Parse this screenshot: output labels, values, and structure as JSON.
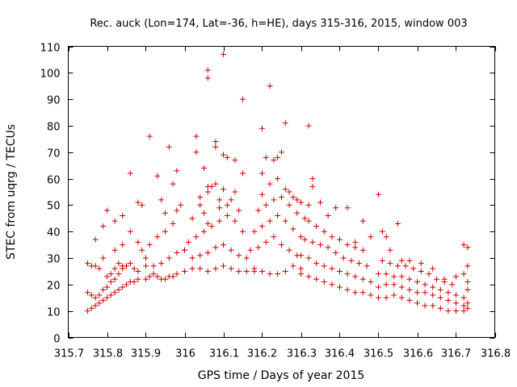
{
  "chart_data": {
    "type": "scatter",
    "title": "Rec. auck (Lon=174, Lat=-36, h=HE), days 315-316, 2015, window 003",
    "xlabel": "GPS time / Days of year 2015",
    "ylabel": "STEC from uqrg / TECUs",
    "xlim": [
      315.7,
      316.8
    ],
    "ylim": [
      0,
      110
    ],
    "x_ticks": [
      "315.7",
      "315.8",
      "315.9",
      "316",
      "316.1",
      "316.2",
      "316.3",
      "316.4",
      "316.5",
      "316.6",
      "316.7",
      "316.8"
    ],
    "y_ticks": [
      "0",
      "10",
      "20",
      "30",
      "40",
      "50",
      "60",
      "70",
      "80",
      "90",
      "100",
      "110"
    ],
    "grid": false,
    "legend": "none",
    "marker": "plus",
    "color": "#cc0000",
    "series": [
      {
        "points": [
          [
            315.75,
            10
          ],
          [
            315.76,
            11
          ],
          [
            315.77,
            12
          ],
          [
            315.78,
            13
          ],
          [
            315.79,
            14
          ],
          [
            315.8,
            15
          ],
          [
            315.81,
            16
          ],
          [
            315.82,
            17
          ],
          [
            315.83,
            18
          ],
          [
            315.84,
            19
          ],
          [
            315.85,
            20
          ],
          [
            315.86,
            21
          ],
          [
            315.87,
            21
          ],
          [
            315.88,
            22
          ],
          [
            315.75,
            17
          ],
          [
            315.76,
            16
          ],
          [
            315.77,
            15
          ],
          [
            315.78,
            16
          ],
          [
            315.79,
            18
          ],
          [
            315.8,
            19
          ],
          [
            315.81,
            21
          ],
          [
            315.82,
            22
          ],
          [
            315.83,
            24
          ],
          [
            315.84,
            26
          ],
          [
            315.75,
            28
          ],
          [
            315.76,
            27
          ],
          [
            315.77,
            27
          ],
          [
            315.78,
            26
          ],
          [
            315.8,
            23
          ],
          [
            315.81,
            24
          ],
          [
            315.82,
            26
          ],
          [
            315.83,
            28
          ],
          [
            315.84,
            27
          ],
          [
            315.85,
            27
          ],
          [
            315.86,
            28
          ],
          [
            315.87,
            26
          ],
          [
            315.88,
            25
          ],
          [
            315.79,
            30
          ],
          [
            315.82,
            33
          ],
          [
            315.84,
            35
          ],
          [
            315.86,
            40
          ],
          [
            315.88,
            36
          ],
          [
            315.89,
            33
          ],
          [
            315.9,
            30
          ],
          [
            315.77,
            37
          ],
          [
            315.79,
            42
          ],
          [
            315.8,
            48
          ],
          [
            315.82,
            44
          ],
          [
            315.84,
            46
          ],
          [
            315.86,
            62
          ],
          [
            315.88,
            51
          ],
          [
            315.89,
            50
          ],
          [
            315.9,
            22
          ],
          [
            315.91,
            23
          ],
          [
            315.92,
            24
          ],
          [
            315.93,
            23
          ],
          [
            315.94,
            22
          ],
          [
            315.95,
            22
          ],
          [
            315.96,
            23
          ],
          [
            315.97,
            23
          ],
          [
            315.98,
            24
          ],
          [
            315.9,
            27
          ],
          [
            315.92,
            27
          ],
          [
            315.94,
            28
          ],
          [
            315.96,
            30
          ],
          [
            315.98,
            32
          ],
          [
            316.0,
            33
          ],
          [
            315.91,
            35
          ],
          [
            315.93,
            38
          ],
          [
            315.95,
            40
          ],
          [
            315.97,
            43
          ],
          [
            315.98,
            48
          ],
          [
            315.99,
            50
          ],
          [
            315.91,
            76
          ],
          [
            315.93,
            61
          ],
          [
            315.94,
            52
          ],
          [
            315.95,
            47
          ],
          [
            315.96,
            72
          ],
          [
            315.97,
            58
          ],
          [
            315.98,
            63
          ],
          [
            316.0,
            25
          ],
          [
            316.02,
            26
          ],
          [
            316.04,
            26
          ],
          [
            316.06,
            25
          ],
          [
            316.08,
            26
          ],
          [
            316.1,
            27
          ],
          [
            316.12,
            26
          ],
          [
            316.14,
            25
          ],
          [
            316.16,
            25
          ],
          [
            316.18,
            26
          ],
          [
            316.0,
            33
          ],
          [
            316.02,
            30
          ],
          [
            316.04,
            31
          ],
          [
            316.06,
            32
          ],
          [
            316.08,
            34
          ],
          [
            316.1,
            35
          ],
          [
            316.12,
            33
          ],
          [
            316.14,
            31
          ],
          [
            316.16,
            30
          ],
          [
            316.01,
            36
          ],
          [
            316.03,
            38
          ],
          [
            316.05,
            40
          ],
          [
            316.07,
            42
          ],
          [
            316.09,
            44
          ],
          [
            316.11,
            46
          ],
          [
            316.13,
            44
          ],
          [
            316.15,
            40
          ],
          [
            316.02,
            45
          ],
          [
            316.04,
            50
          ],
          [
            316.06,
            55
          ],
          [
            316.08,
            58
          ],
          [
            316.1,
            56
          ],
          [
            316.12,
            52
          ],
          [
            316.14,
            48
          ],
          [
            316.03,
            70
          ],
          [
            316.05,
            64
          ],
          [
            316.07,
            57
          ],
          [
            316.09,
            52
          ],
          [
            316.11,
            50
          ],
          [
            316.13,
            55
          ],
          [
            316.03,
            76
          ],
          [
            316.08,
            74
          ],
          [
            316.11,
            68
          ],
          [
            316.13,
            67
          ],
          [
            316.06,
            101
          ],
          [
            316.06,
            57
          ],
          [
            316.08,
            72
          ],
          [
            316.1,
            69
          ],
          [
            316.06,
            43
          ],
          [
            316.04,
            53
          ],
          [
            316.05,
            47
          ],
          [
            316.09,
            49
          ],
          [
            316.15,
            62
          ],
          [
            316.06,
            98
          ],
          [
            316.1,
            107
          ],
          [
            316.15,
            90
          ],
          [
            316.18,
            25
          ],
          [
            316.2,
            25
          ],
          [
            316.22,
            24
          ],
          [
            316.24,
            24
          ],
          [
            316.26,
            25
          ],
          [
            316.28,
            27
          ],
          [
            316.3,
            26
          ],
          [
            316.17,
            33
          ],
          [
            316.19,
            34
          ],
          [
            316.21,
            36
          ],
          [
            316.23,
            38
          ],
          [
            316.25,
            35
          ],
          [
            316.27,
            33
          ],
          [
            316.29,
            31
          ],
          [
            316.18,
            40
          ],
          [
            316.2,
            42
          ],
          [
            316.22,
            44
          ],
          [
            316.24,
            46
          ],
          [
            316.26,
            44
          ],
          [
            316.28,
            41
          ],
          [
            316.3,
            38
          ],
          [
            316.19,
            48
          ],
          [
            316.21,
            50
          ],
          [
            316.23,
            52
          ],
          [
            316.25,
            53
          ],
          [
            316.27,
            50
          ],
          [
            316.29,
            47
          ],
          [
            316.31,
            45
          ],
          [
            316.2,
            54
          ],
          [
            316.22,
            58
          ],
          [
            316.24,
            60
          ],
          [
            316.26,
            56
          ],
          [
            316.28,
            53
          ],
          [
            316.3,
            51
          ],
          [
            316.2,
            79
          ],
          [
            316.21,
            68
          ],
          [
            316.22,
            95
          ],
          [
            316.23,
            67
          ],
          [
            316.25,
            70
          ],
          [
            316.26,
            81
          ],
          [
            316.2,
            62
          ],
          [
            316.24,
            68
          ],
          [
            316.27,
            55
          ],
          [
            316.29,
            52
          ],
          [
            316.32,
            50
          ],
          [
            316.3,
            24
          ],
          [
            316.32,
            23
          ],
          [
            316.34,
            22
          ],
          [
            316.36,
            21
          ],
          [
            316.38,
            20
          ],
          [
            316.4,
            19
          ],
          [
            316.42,
            18
          ],
          [
            316.44,
            17
          ],
          [
            316.46,
            17
          ],
          [
            316.48,
            16
          ],
          [
            316.3,
            31
          ],
          [
            316.32,
            30
          ],
          [
            316.34,
            28
          ],
          [
            316.36,
            27
          ],
          [
            316.38,
            26
          ],
          [
            316.4,
            25
          ],
          [
            316.42,
            24
          ],
          [
            316.44,
            23
          ],
          [
            316.46,
            22
          ],
          [
            316.48,
            21
          ],
          [
            316.31,
            37
          ],
          [
            316.33,
            36
          ],
          [
            316.35,
            35
          ],
          [
            316.37,
            34
          ],
          [
            316.39,
            32
          ],
          [
            316.41,
            30
          ],
          [
            316.43,
            29
          ],
          [
            316.45,
            28
          ],
          [
            316.47,
            27
          ],
          [
            316.32,
            44
          ],
          [
            316.34,
            42
          ],
          [
            316.36,
            40
          ],
          [
            316.38,
            38
          ],
          [
            316.4,
            37
          ],
          [
            316.42,
            35
          ],
          [
            316.44,
            34
          ],
          [
            316.46,
            33
          ],
          [
            316.33,
            60
          ],
          [
            316.32,
            80
          ],
          [
            316.33,
            57
          ],
          [
            316.35,
            51
          ],
          [
            316.37,
            46
          ],
          [
            316.39,
            49
          ],
          [
            316.42,
            49
          ],
          [
            316.44,
            36
          ],
          [
            316.46,
            44
          ],
          [
            316.48,
            38
          ],
          [
            316.5,
            54
          ],
          [
            316.51,
            40
          ],
          [
            316.52,
            38
          ],
          [
            316.55,
            43
          ],
          [
            316.53,
            33
          ],
          [
            316.56,
            29
          ],
          [
            316.5,
            15
          ],
          [
            316.52,
            15
          ],
          [
            316.54,
            16
          ],
          [
            316.56,
            15
          ],
          [
            316.58,
            14
          ],
          [
            316.6,
            13
          ],
          [
            316.62,
            12
          ],
          [
            316.64,
            12
          ],
          [
            316.66,
            11
          ],
          [
            316.68,
            10
          ],
          [
            316.7,
            10
          ],
          [
            316.72,
            10
          ],
          [
            316.5,
            19
          ],
          [
            316.52,
            20
          ],
          [
            316.54,
            20
          ],
          [
            316.56,
            19
          ],
          [
            316.58,
            18
          ],
          [
            316.6,
            17
          ],
          [
            316.62,
            17
          ],
          [
            316.64,
            16
          ],
          [
            316.66,
            15
          ],
          [
            316.68,
            14
          ],
          [
            316.7,
            13
          ],
          [
            316.72,
            12
          ],
          [
            316.5,
            24
          ],
          [
            316.52,
            24
          ],
          [
            316.54,
            23
          ],
          [
            316.56,
            23
          ],
          [
            316.58,
            22
          ],
          [
            316.6,
            21
          ],
          [
            316.62,
            20
          ],
          [
            316.64,
            19
          ],
          [
            316.66,
            18
          ],
          [
            316.68,
            17
          ],
          [
            316.7,
            16
          ],
          [
            316.72,
            15
          ],
          [
            316.51,
            29
          ],
          [
            316.53,
            28
          ],
          [
            316.55,
            27
          ],
          [
            316.57,
            27
          ],
          [
            316.59,
            26
          ],
          [
            316.61,
            25
          ],
          [
            316.63,
            24
          ],
          [
            316.65,
            22
          ],
          [
            316.67,
            21
          ],
          [
            316.69,
            20
          ],
          [
            316.58,
            29
          ],
          [
            316.61,
            28
          ],
          [
            316.64,
            26
          ],
          [
            316.67,
            22
          ],
          [
            316.7,
            23
          ],
          [
            316.72,
            24
          ],
          [
            316.72,
            35
          ],
          [
            316.73,
            34
          ],
          [
            316.73,
            27
          ],
          [
            316.73,
            21
          ],
          [
            316.73,
            18
          ],
          [
            316.73,
            13
          ],
          [
            316.73,
            11
          ]
        ]
      }
    ]
  }
}
